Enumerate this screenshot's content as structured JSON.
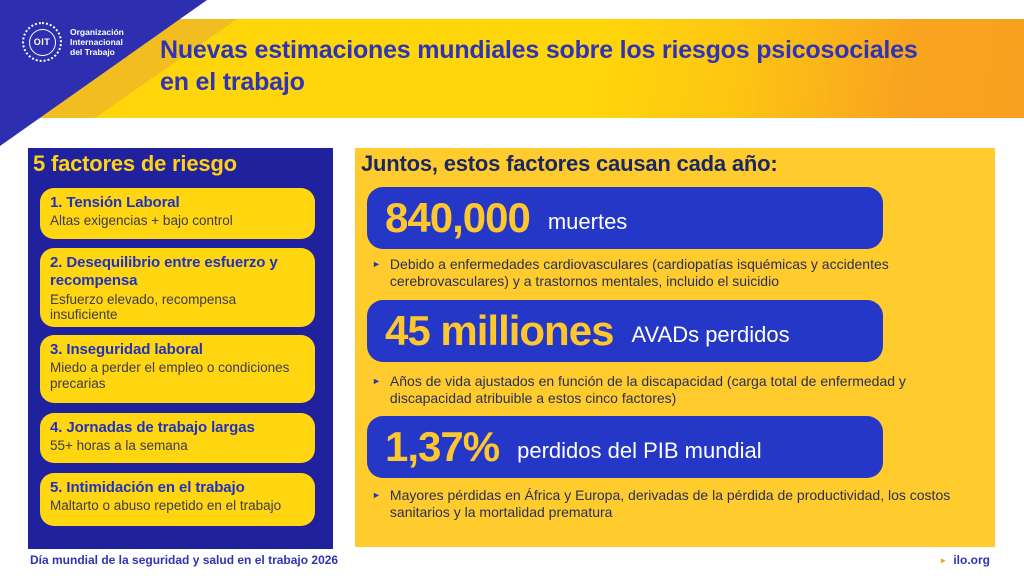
{
  "brand": {
    "logo_acronym": "OIT",
    "logo_line1": "Organización",
    "logo_line2": "Internacional",
    "logo_line3": "del Trabajo"
  },
  "header": {
    "title_line1": "Nuevas estimaciones mundiales sobre los riesgos psicosociales",
    "title_line2": "en el trabajo"
  },
  "left_panel": {
    "title": "5 factores de riesgo",
    "factors": [
      {
        "title": "1. Tensión Laboral",
        "desc": "Altas exigencias + bajo control"
      },
      {
        "title": "2. Desequilibrio entre esfuerzo y recompensa",
        "desc": "Esfuerzo elevado, recompensa insuficiente"
      },
      {
        "title": "3. Inseguridad laboral",
        "desc": "Miedo a perder el empleo o condiciones precarias"
      },
      {
        "title": "4. Jornadas de trabajo largas",
        "desc": "55+ horas a la semana"
      },
      {
        "title": "5. Intimidación en el trabajo",
        "desc": "Maltarto o abuso repetido en el trabajo"
      }
    ]
  },
  "right_panel": {
    "title": "Juntos, estos factores causan cada año:",
    "bullet_icon": "►",
    "stats": [
      {
        "value": "840,000",
        "unit": "muertes",
        "note": "Debido a enfermedades cardiovasculares (cardiopatías isquémicas y accidentes cerebrovasculares) y a trastornos mentales, incluido el suicidio"
      },
      {
        "value": "45 milliones",
        "unit": "AVADs perdidos",
        "note": "Años de vida ajustados en función de la discapacidad (carga total de enfermedad y discapacidad atribuible a estos cinco factores)"
      },
      {
        "value": "1,37%",
        "unit": "perdidos del PIB mundial",
        "note": "Mayores pérdidas en África y Europa, derivadas de la pérdida de productividad, los costos sanitarios y la mortalidad prematura"
      }
    ]
  },
  "footer": {
    "left": "Día mundial de la seguridad y salud en el trabajo 2026",
    "right_arrow": "►",
    "right": "ilo.org"
  },
  "colors": {
    "header_yellow": "#ffd60a",
    "header_orange": "#f8a01f",
    "corner_blue": "#2e2eb0",
    "panel_navy": "#1f219d",
    "panel_gold": "#ffcb2d",
    "card_yellow": "#ffd60f",
    "stat_card_blue": "#2437c6",
    "stat_value_yellow": "#ffc72e",
    "title_blue": "#2e34b3",
    "heading_navy": "#19285f"
  }
}
